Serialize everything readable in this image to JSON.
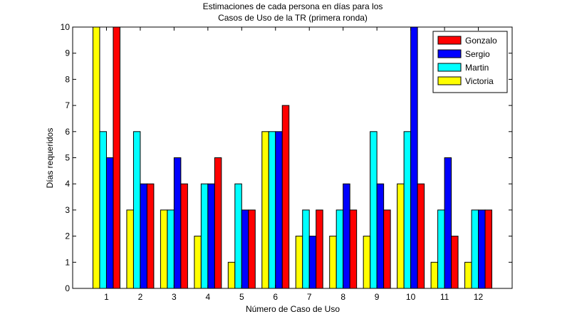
{
  "chart_data": {
    "type": "bar",
    "title_lines": [
      "Estimaciones de cada persona en días para los",
      "Casos de Uso de la TR (primera ronda)"
    ],
    "xlabel": "Número de Caso de Uso",
    "ylabel": "Días requeridos",
    "categories": [
      "1",
      "2",
      "3",
      "4",
      "5",
      "6",
      "7",
      "8",
      "9",
      "10",
      "11",
      "12"
    ],
    "ylim": [
      0,
      10
    ],
    "yticks": [
      "0",
      "1",
      "2",
      "3",
      "4",
      "5",
      "6",
      "7",
      "8",
      "9",
      "10"
    ],
    "series": [
      {
        "name": "Victoria",
        "color": "#ffff00",
        "values": [
          10,
          3,
          3,
          2,
          1,
          6,
          2,
          2,
          2,
          4,
          1,
          1
        ]
      },
      {
        "name": "Martin",
        "color": "#00ffff",
        "values": [
          6,
          6,
          3,
          4,
          4,
          6,
          3,
          3,
          6,
          6,
          3,
          3
        ]
      },
      {
        "name": "Sergio",
        "color": "#0000ff",
        "values": [
          5,
          4,
          5,
          4,
          3,
          6,
          2,
          4,
          4,
          10,
          5,
          3
        ]
      },
      {
        "name": "Gonzalo",
        "color": "#ff0000",
        "values": [
          10,
          4,
          4,
          5,
          3,
          7,
          3,
          3,
          3,
          4,
          2,
          3
        ]
      }
    ],
    "legend_order": [
      "Gonzalo",
      "Sergio",
      "Martin",
      "Victoria"
    ],
    "legend_position": "top-right",
    "grid": false
  }
}
